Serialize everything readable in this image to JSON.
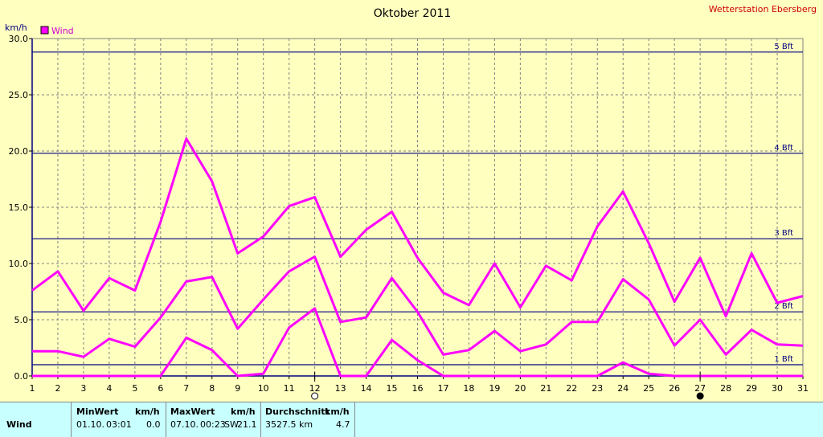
{
  "header": {
    "title": "Oktober 2011",
    "station": "Wetterstation Ebersberg"
  },
  "legend": {
    "label": "Wind",
    "color": "#ff00ff"
  },
  "chart_data": {
    "type": "line",
    "title": "Oktober 2011",
    "ylabel": "km/h",
    "xlabel": "",
    "x": [
      1,
      2,
      3,
      4,
      5,
      6,
      7,
      8,
      9,
      10,
      11,
      12,
      13,
      14,
      15,
      16,
      17,
      18,
      19,
      20,
      21,
      22,
      23,
      24,
      25,
      26,
      27,
      28,
      29,
      30,
      31
    ],
    "xlim": [
      1,
      31
    ],
    "ylim": [
      0,
      30
    ],
    "yticks": [
      "0.0",
      "5.0",
      "10.0",
      "15.0",
      "20.0",
      "25.0",
      "30.0"
    ],
    "xticks": [
      "1",
      "2",
      "3",
      "4",
      "5",
      "6",
      "7",
      "8",
      "9",
      "10",
      "11",
      "12",
      "13",
      "14",
      "15",
      "16",
      "17",
      "18",
      "19",
      "20",
      "21",
      "22",
      "23",
      "24",
      "25",
      "26",
      "27",
      "28",
      "29",
      "30",
      "31"
    ],
    "grid": true,
    "legend_position": "top-left",
    "series": [
      {
        "name": "Wind",
        "values": [
          7.6,
          9.3,
          5.8,
          8.7,
          7.6,
          13.7,
          21.1,
          17.3,
          10.9,
          12.4,
          15.1,
          15.9,
          10.6,
          13.0,
          14.6,
          10.5,
          7.4,
          6.3,
          10.0,
          6.1,
          9.8,
          8.5,
          13.3,
          16.4,
          11.8,
          6.6,
          10.5,
          5.3,
          10.9,
          6.5,
          7.1
        ]
      },
      {
        "name": "",
        "values": [
          2.2,
          2.2,
          1.7,
          3.3,
          2.6,
          5.2,
          8.4,
          8.8,
          4.2,
          6.8,
          9.3,
          10.6,
          4.8,
          5.2,
          8.7,
          5.7,
          1.9,
          2.3,
          4.0,
          2.2,
          2.8,
          4.8,
          4.8,
          8.6,
          6.8,
          2.7,
          5.0,
          1.9,
          4.1,
          2.8,
          2.7
        ]
      },
      {
        "name": "",
        "values": [
          0.0,
          0.0,
          0.0,
          0.0,
          0.0,
          0.0,
          3.4,
          2.3,
          0.0,
          0.2,
          4.3,
          6.0,
          0.0,
          0.0,
          3.2,
          1.4,
          0.0,
          0.0,
          0.0,
          0.0,
          0.0,
          0.0,
          0.0,
          1.2,
          0.2,
          0.0,
          0.0,
          0.0,
          0.0,
          0.0,
          0.0
        ]
      }
    ],
    "beaufort": [
      {
        "label": "1 Bft",
        "value": 1.0
      },
      {
        "label": "2 Bft",
        "value": 5.7
      },
      {
        "label": "3 Bft",
        "value": 12.2
      },
      {
        "label": "4 Bft",
        "value": 19.8
      },
      {
        "label": "5 Bft",
        "value": 28.8
      }
    ],
    "moon_phases": [
      {
        "day": 12,
        "phase": "full"
      },
      {
        "day": 27,
        "phase": "new"
      }
    ],
    "colors": {
      "line": "#ff00ff",
      "beaufort": "#000080",
      "grid": "#808080",
      "axis": "#000080"
    }
  },
  "stats": {
    "row_label": "Wind",
    "min": {
      "header": "MinWert",
      "unit": "km/h",
      "date": "01.10.",
      "time": "03:01",
      "value": "0.0"
    },
    "max": {
      "header": "MaxWert",
      "unit": "km/h",
      "date": "07.10.",
      "time": "00:23",
      "dir": "SW",
      "value": "21.1"
    },
    "avg": {
      "header": "Durchschnitt",
      "unit": "km/h",
      "distance": "3527.5 km",
      "value": "4.7"
    }
  }
}
